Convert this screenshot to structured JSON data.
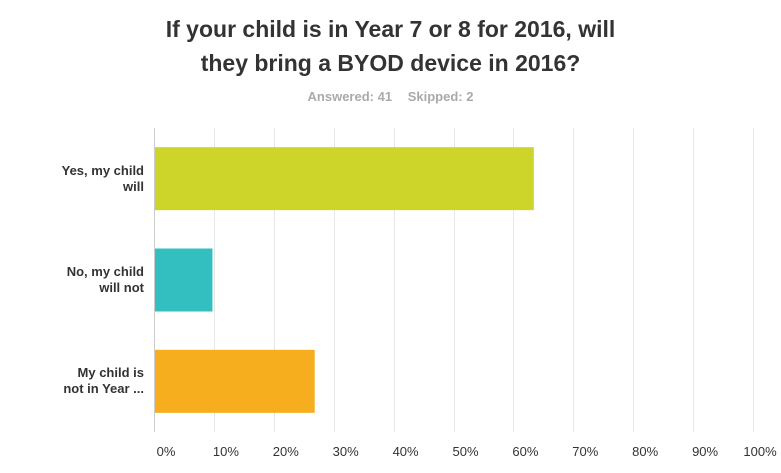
{
  "title_lines": [
    "If your child is in Year 7 or 8 for 2016, will",
    "they bring a BYOD device in 2016?"
  ],
  "answered_label": "Answered: 41",
  "skipped_label": "Skipped: 2",
  "chart_data": {
    "type": "bar",
    "orientation": "horizontal",
    "categories": [
      [
        "Yes, my child",
        "will"
      ],
      [
        "No, my child",
        "will not"
      ],
      [
        "My child is",
        "not in Year ..."
      ]
    ],
    "values": [
      63.41,
      9.76,
      26.83
    ],
    "colors": [
      "#cdd52a",
      "#33bfbf",
      "#f6ae1f"
    ],
    "x_ticks": [
      "0%",
      "10%",
      "20%",
      "30%",
      "40%",
      "50%",
      "60%",
      "70%",
      "80%",
      "90%",
      "100%"
    ],
    "xlim": [
      0,
      100
    ],
    "grid": true
  }
}
